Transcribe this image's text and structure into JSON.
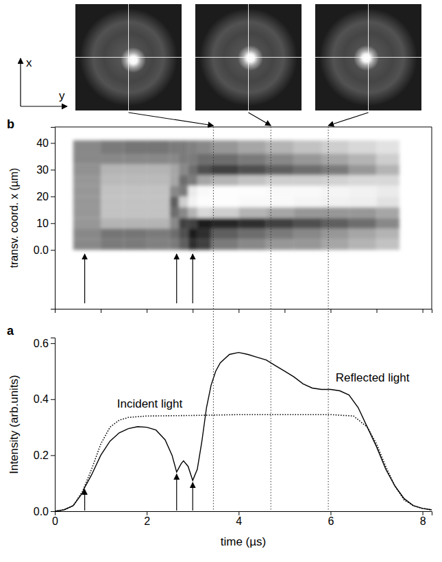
{
  "chart_data": [
    {
      "type": "heatmap",
      "panel": "b",
      "ylabel": "transv. coord. x (µm)",
      "xlim": [
        0,
        8.2
      ],
      "xticks": [
        0,
        1,
        2,
        3,
        4,
        5,
        6,
        7,
        8
      ],
      "ylim": [
        -22,
        46
      ],
      "yticks": [
        {
          "value": 0,
          "label": "0.0"
        },
        10,
        20,
        30,
        40
      ],
      "tick_labels": "y",
      "x_edges": [
        0.4,
        1.0,
        1.5,
        2.0,
        2.5,
        2.7,
        2.9,
        3.1,
        3.4,
        4.0,
        4.6,
        5.2,
        5.8,
        6.4,
        7.0,
        7.5
      ],
      "y_edges": [
        0,
        4,
        8,
        12,
        16,
        20,
        24,
        28,
        32,
        36,
        41
      ],
      "cells": [
        [
          0.45,
          0.4,
          0.4,
          0.42,
          0.4,
          0.3,
          0.15,
          0.2,
          0.4,
          0.45,
          0.5,
          0.5,
          0.55,
          0.6,
          0.65
        ],
        [
          0.45,
          0.38,
          0.38,
          0.4,
          0.35,
          0.25,
          0.1,
          0.15,
          0.3,
          0.35,
          0.4,
          0.45,
          0.5,
          0.55,
          0.6
        ],
        [
          0.5,
          0.6,
          0.6,
          0.6,
          0.45,
          0.2,
          0.2,
          0.1,
          0.12,
          0.15,
          0.2,
          0.25,
          0.3,
          0.35,
          0.45
        ],
        [
          0.5,
          0.65,
          0.65,
          0.65,
          0.35,
          0.45,
          0.6,
          0.75,
          0.7,
          0.6,
          0.55,
          0.5,
          0.5,
          0.5,
          0.55
        ],
        [
          0.5,
          0.65,
          0.65,
          0.65,
          0.3,
          0.7,
          0.9,
          0.98,
          0.98,
          0.95,
          0.95,
          0.92,
          0.9,
          0.88,
          0.8
        ],
        [
          0.5,
          0.65,
          0.65,
          0.65,
          0.45,
          0.4,
          0.85,
          0.95,
          0.98,
          0.98,
          0.95,
          0.95,
          0.92,
          0.9,
          0.85
        ],
        [
          0.5,
          0.62,
          0.62,
          0.62,
          0.55,
          0.35,
          0.4,
          0.55,
          0.6,
          0.65,
          0.7,
          0.7,
          0.72,
          0.75,
          0.75
        ],
        [
          0.48,
          0.6,
          0.6,
          0.6,
          0.55,
          0.45,
          0.35,
          0.25,
          0.2,
          0.25,
          0.3,
          0.35,
          0.4,
          0.5,
          0.6
        ],
        [
          0.45,
          0.45,
          0.45,
          0.45,
          0.45,
          0.4,
          0.4,
          0.35,
          0.35,
          0.4,
          0.45,
          0.5,
          0.55,
          0.6,
          0.7
        ],
        [
          0.45,
          0.4,
          0.38,
          0.38,
          0.4,
          0.4,
          0.42,
          0.45,
          0.5,
          0.55,
          0.6,
          0.65,
          0.7,
          0.75,
          0.8
        ]
      ],
      "arrows": [
        0.65,
        2.65,
        3.0
      ]
    },
    {
      "type": "line",
      "panel": "a",
      "xlabel": "time (µs)",
      "ylabel": "Intensity (arb.units)",
      "xlim": [
        0,
        8.2
      ],
      "xticks": [
        0,
        2,
        4,
        6,
        8
      ],
      "ylim": [
        0,
        0.62
      ],
      "yticks": [
        {
          "value": 0,
          "label": "0.0"
        },
        0.2,
        0.4,
        0.6
      ],
      "series": [
        {
          "name": "Incident light",
          "color": "#000000",
          "line_style": "dotted",
          "x": [
            0,
            0.2,
            0.4,
            0.6,
            0.8,
            1.0,
            1.2,
            1.4,
            1.6,
            2.0,
            3.0,
            4.0,
            5.0,
            6.0,
            6.5,
            6.8,
            7.0,
            7.2,
            7.4,
            7.6,
            7.8,
            8.0,
            8.2
          ],
          "values": [
            0.0,
            0.005,
            0.02,
            0.07,
            0.15,
            0.24,
            0.3,
            0.325,
            0.335,
            0.34,
            0.342,
            0.345,
            0.345,
            0.345,
            0.34,
            0.3,
            0.24,
            0.16,
            0.09,
            0.04,
            0.02,
            0.01,
            0.005
          ]
        },
        {
          "name": "Reflected light",
          "color": "#000000",
          "line_style": "solid",
          "x": [
            0,
            0.2,
            0.4,
            0.6,
            0.65,
            0.8,
            1.0,
            1.2,
            1.4,
            1.6,
            1.8,
            2.0,
            2.2,
            2.4,
            2.55,
            2.65,
            2.75,
            2.8,
            2.9,
            3.0,
            3.1,
            3.2,
            3.3,
            3.4,
            3.5,
            3.6,
            3.8,
            4.0,
            4.2,
            4.4,
            4.6,
            4.8,
            5.0,
            5.2,
            5.4,
            5.6,
            5.8,
            6.0,
            6.2,
            6.4,
            6.6,
            6.8,
            7.0,
            7.2,
            7.4,
            7.6,
            7.8,
            8.0,
            8.2
          ],
          "values": [
            0,
            0.005,
            0.02,
            0.065,
            0.085,
            0.13,
            0.2,
            0.25,
            0.28,
            0.295,
            0.302,
            0.3,
            0.29,
            0.255,
            0.2,
            0.14,
            0.17,
            0.18,
            0.16,
            0.11,
            0.15,
            0.25,
            0.37,
            0.45,
            0.5,
            0.53,
            0.56,
            0.567,
            0.56,
            0.55,
            0.54,
            0.52,
            0.5,
            0.48,
            0.455,
            0.44,
            0.435,
            0.435,
            0.43,
            0.415,
            0.37,
            0.3,
            0.23,
            0.15,
            0.09,
            0.045,
            0.02,
            0.01,
            0.005
          ]
        }
      ],
      "arrows": [
        0.65,
        2.65,
        3.0
      ]
    }
  ],
  "snapshots": {
    "times": [
      3.45,
      4.7,
      5.95
    ],
    "axis_labels": [
      "x",
      "y"
    ]
  }
}
